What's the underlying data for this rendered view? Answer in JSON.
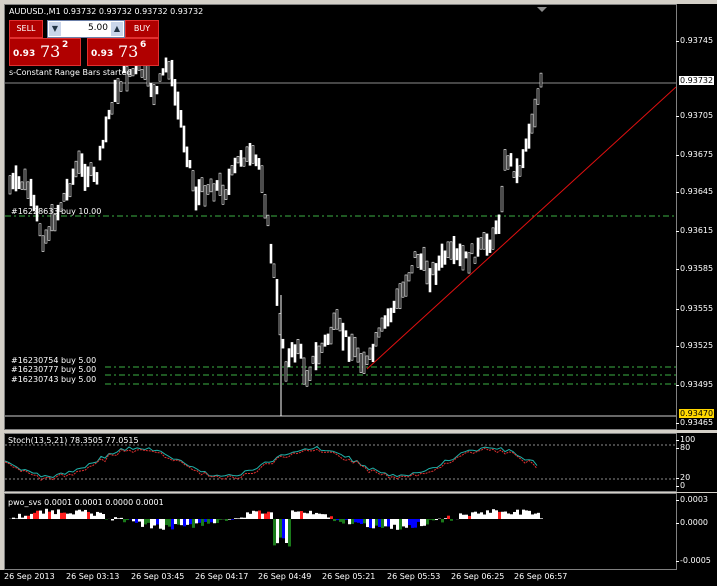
{
  "window": {
    "title": "AUDUSD.,M1  0.93732 0.93732 0.93732 0.93732"
  },
  "trade_panel": {
    "sell_label": "SELL",
    "buy_label": "BUY",
    "lot_value": "5.00",
    "sell_price_small": "0.93",
    "sell_price_big": "73",
    "sell_price_sup": "2",
    "buy_price_small": "0.93",
    "buy_price_big": "73",
    "buy_price_sup": "6"
  },
  "labels": {
    "indicator_status": "s-Constant Range Bars started",
    "order_1": "#16228633 buy 10.00",
    "order_2": "#16230754 buy 5.00",
    "order_3": "#16230777 buy 5.00",
    "order_4": "#16230743 buy 5.00"
  },
  "price_scale": {
    "ticks": [
      "0.93745",
      "0.93705",
      "0.93675",
      "0.93645",
      "0.93615",
      "0.93585",
      "0.93555",
      "0.93525",
      "0.93495",
      "0.93465"
    ],
    "current_price": "0.93732",
    "low_price": "0.93470"
  },
  "stoch": {
    "title": "Stoch(13,5,21) 78.3505 77.0515",
    "ticks": [
      "100",
      "80",
      "20",
      "0"
    ]
  },
  "pwo": {
    "title": "pwo_svs 0.0001 0.0001 0.0000 0.0001",
    "ticks": [
      "0.0003",
      "0.0000",
      "-0.0005"
    ]
  },
  "time_axis": [
    "26 Sep 2013",
    "26 Sep 03:13",
    "26 Sep 03:45",
    "26 Sep 04:17",
    "26 Sep 04:49",
    "26 Sep 05:21",
    "26 Sep 05:53",
    "26 Sep 06:25",
    "26 Sep 06:57"
  ],
  "colors": {
    "background": "#000000",
    "bars": "#ffffff",
    "order_line": "#3cb043",
    "trendline": "#e01010",
    "current_price_tag": "#ffffff",
    "low_price_tag": "#ffd700",
    "stoch_main": "#20b2aa",
    "stoch_signal": "#e03030",
    "pwo_up": "#ffffff",
    "pwo_down": "#0000ff"
  }
}
